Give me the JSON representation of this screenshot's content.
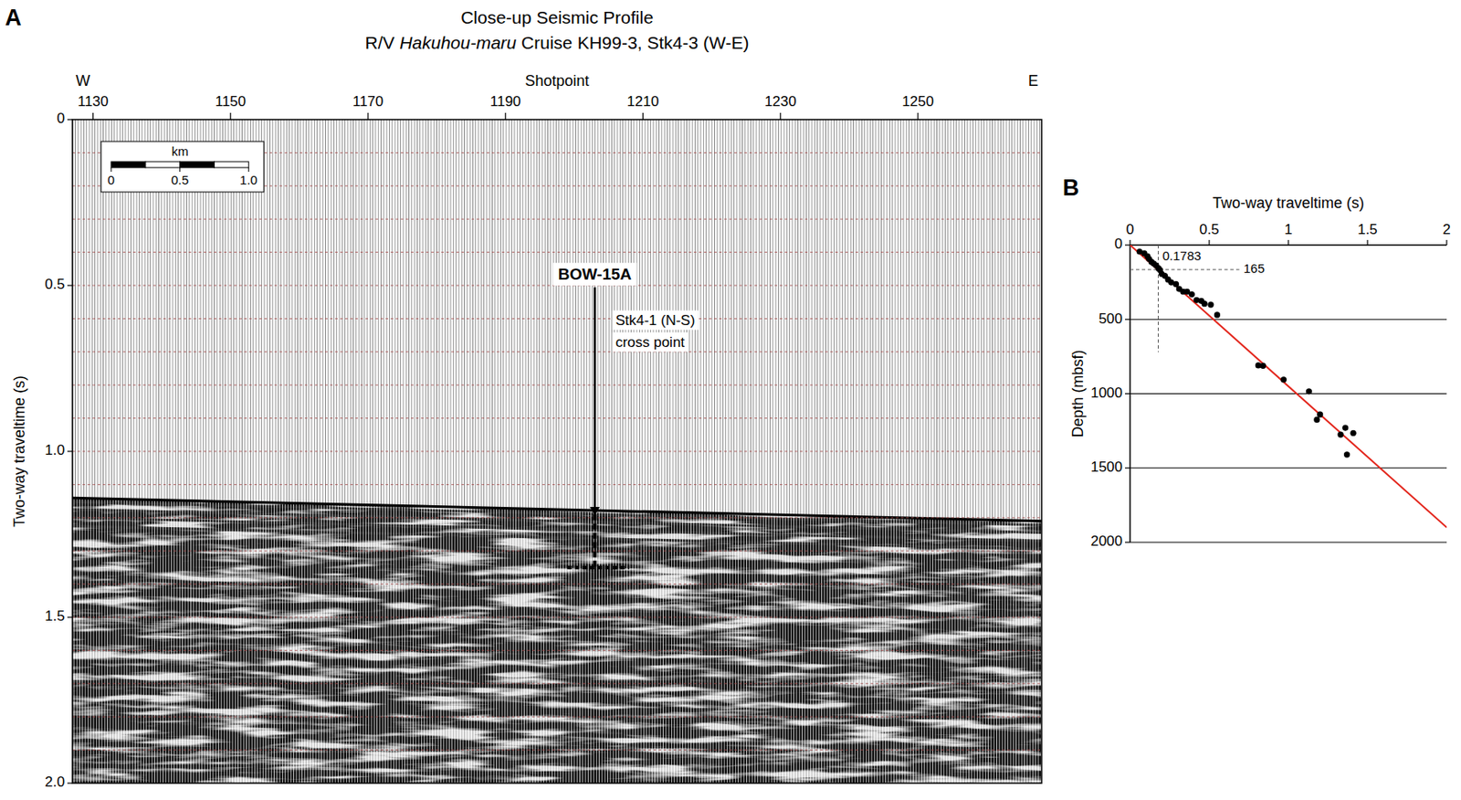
{
  "chart_data": [
    {
      "type": "seismic_profile",
      "panel": "A",
      "title": "Close-up Seismic Profile",
      "subtitle": [
        "R/V ",
        "Hakuhou-maru",
        " Cruise KH99-3, Stk4-3 (W-E)"
      ],
      "x_label": "Shotpoint",
      "x_ends": [
        "W",
        "E"
      ],
      "y_label": "Two-way traveltime (s)",
      "xlim": [
        1127,
        1268
      ],
      "xticks": [
        1130,
        1150,
        1170,
        1190,
        1210,
        1230,
        1250
      ],
      "ylim": [
        0,
        2
      ],
      "yticks": [
        0,
        0.5,
        {
          "value": 1,
          "label": "1.0"
        },
        1.5,
        {
          "value": 2,
          "label": "2.0"
        }
      ],
      "ygrid": [
        0.1,
        0.2,
        0.3,
        0.4,
        0.5,
        0.6,
        0.7,
        0.8,
        0.9,
        1,
        1.1,
        1.2,
        1.3,
        1.4,
        1.5,
        1.6,
        1.7,
        1.8,
        1.9
      ],
      "grid": true,
      "seafloor": {
        "shotpoint": [
          1127,
          1268
        ],
        "twt": [
          1.14,
          1.21
        ]
      },
      "reflector_offsets": [
        0.012,
        0.035,
        0.06,
        0.085
      ],
      "annotations": [
        {
          "text": "BOW-15A",
          "shotpoint": 1203,
          "twt": 0.47,
          "arrow_to": 1.19
        },
        {
          "text": [
            "Stk4-1 (N-S)",
            "cross point"
          ],
          "shotpoint": 1206,
          "twt": 0.64
        }
      ],
      "well": {
        "shotpoint": 1203,
        "twt": [
          1.19,
          1.35
        ],
        "base_shotpoints": [
          1199,
          1208
        ]
      },
      "scale_bar": {
        "title": "km",
        "ticks": [
          0,
          0.5,
          {
            "value": 1,
            "label": "1.0"
          }
        ],
        "km_per_shotpoint": 0.05
      }
    },
    {
      "type": "scatter",
      "panel": "B",
      "x_label": "Two-way traveltime (s)",
      "y_label": "Depth (mbsf)",
      "xlim": [
        0,
        2
      ],
      "xticks": [
        0,
        0.5,
        1,
        1.5,
        2
      ],
      "ylim": [
        0,
        2000
      ],
      "yticks": [
        0,
        500,
        1000,
        1500,
        2000
      ],
      "grid": true,
      "x": [
        0.06,
        0.09,
        0.11,
        0.12,
        0.135,
        0.15,
        0.165,
        0.18,
        0.19,
        0.2,
        0.22,
        0.24,
        0.26,
        0.29,
        0.31,
        0.335,
        0.36,
        0.39,
        0.42,
        0.45,
        0.47,
        0.51,
        0.55,
        0.81,
        0.84,
        0.97,
        1.13,
        1.2,
        1.18,
        1.33,
        1.36,
        1.41,
        1.37
      ],
      "values": [
        44,
        56,
        75,
        94,
        113,
        125,
        138,
        157,
        169,
        194,
        207,
        232,
        251,
        263,
        295,
        313,
        313,
        332,
        370,
        376,
        395,
        401,
        470,
        810,
        812,
        905,
        985,
        1140,
        1175,
        1275,
        1230,
        1265,
        1410
      ],
      "color": "#000000",
      "marker": "circle",
      "fit": {
        "x": [
          0,
          2
        ],
        "values": [
          0,
          1900
        ],
        "color": "#e3261c"
      },
      "reference": {
        "x": 0.1783,
        "y": 165,
        "x_extent": 0.69,
        "y_extent": 720
      }
    }
  ]
}
